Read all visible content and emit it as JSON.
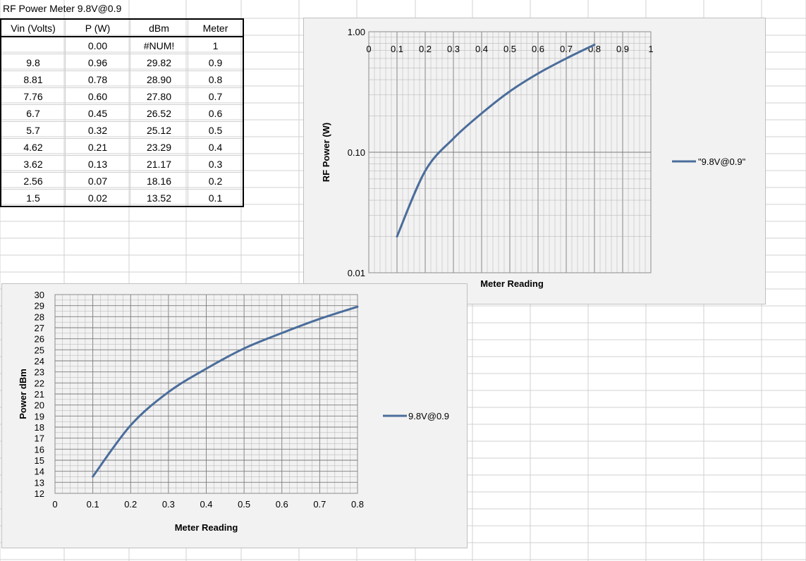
{
  "sheet_title": "RF Power Meter 9.8V@0.9",
  "table": {
    "headers": [
      "Vin (Volts)",
      "P (W)",
      "dBm",
      "Meter"
    ],
    "rows": [
      [
        "",
        "0.00",
        "#NUM!",
        "1"
      ],
      [
        "9.8",
        "0.96",
        "29.82",
        "0.9"
      ],
      [
        "8.81",
        "0.78",
        "28.90",
        "0.8"
      ],
      [
        "7.76",
        "0.60",
        "27.80",
        "0.7"
      ],
      [
        "6.7",
        "0.45",
        "26.52",
        "0.6"
      ],
      [
        "5.7",
        "0.32",
        "25.12",
        "0.5"
      ],
      [
        "4.62",
        "0.21",
        "23.29",
        "0.4"
      ],
      [
        "3.62",
        "0.13",
        "21.17",
        "0.3"
      ],
      [
        "2.56",
        "0.07",
        "18.16",
        "0.2"
      ],
      [
        "1.5",
        "0.02",
        "13.52",
        "0.1"
      ]
    ]
  },
  "colors": {
    "series": "#4a6d9b",
    "grid": "#8c8c8c",
    "chart_bg": "#f2f2f2",
    "cell_grid": "#d0d0d0"
  },
  "chart_data": [
    {
      "type": "line",
      "title": "",
      "xlabel": "Meter Reading",
      "ylabel": "RF Power (W)",
      "y_scale": "log",
      "ylim": [
        0.01,
        1.0
      ],
      "xlim": [
        0,
        1
      ],
      "x_tick_labels": [
        "0",
        "0.1",
        "0.2",
        "0.3",
        "0.4",
        "0.5",
        "0.6",
        "0.7",
        "0.8",
        "0.9",
        "1"
      ],
      "y_tick_labels": [
        "1.00",
        "0.10",
        "0.01"
      ],
      "legend_position": "right",
      "grid": true,
      "series": [
        {
          "name": "\"9.8V@0.9\"",
          "x": [
            0.1,
            0.2,
            0.3,
            0.4,
            0.5,
            0.6,
            0.7,
            0.8
          ],
          "y": [
            0.02,
            0.07,
            0.13,
            0.21,
            0.32,
            0.45,
            0.6,
            0.78
          ]
        }
      ]
    },
    {
      "type": "line",
      "title": "",
      "xlabel": "Meter Reading",
      "ylabel": "Power dBm",
      "ylim": [
        12,
        30
      ],
      "xlim": [
        0,
        0.8
      ],
      "x_tick_labels": [
        "0",
        "0.1",
        "0.2",
        "0.3",
        "0.4",
        "0.5",
        "0.6",
        "0.7",
        "0.8"
      ],
      "y_tick_labels": [
        "12",
        "13",
        "14",
        "15",
        "16",
        "17",
        "18",
        "19",
        "20",
        "21",
        "22",
        "23",
        "24",
        "25",
        "26",
        "27",
        "28",
        "29",
        "30"
      ],
      "legend_position": "right",
      "grid": true,
      "series": [
        {
          "name": "9.8V@0.9",
          "x": [
            0.1,
            0.2,
            0.3,
            0.4,
            0.5,
            0.6,
            0.7,
            0.8
          ],
          "y": [
            13.52,
            18.16,
            21.17,
            23.29,
            25.12,
            26.52,
            27.8,
            28.9
          ]
        }
      ]
    }
  ]
}
